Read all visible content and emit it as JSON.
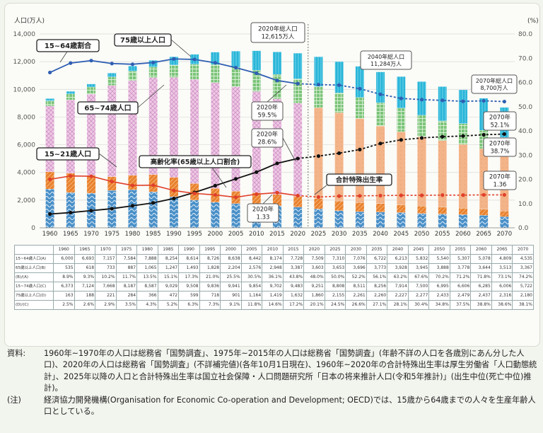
{
  "chart_data": {
    "type": "bar",
    "left_axis_label": "人口(万人)",
    "right_axis_label": "(%)",
    "left_ticks": [
      "0",
      "2,000",
      "4,000",
      "6,000",
      "8,000",
      "10,000",
      "12,000",
      "14,000"
    ],
    "right_ticks": [
      "0.0",
      "10.0",
      "20.0",
      "30.0",
      "40.0",
      "50.0",
      "60.0",
      "70.0",
      "80.0"
    ],
    "ylim_left": [
      0,
      14000
    ],
    "ylim_right": [
      0,
      80
    ],
    "categories": [
      "1960",
      "1965",
      "1970",
      "1975",
      "1980",
      "1985",
      "1990",
      "1995",
      "2000",
      "2005",
      "2010",
      "2015",
      "2020",
      "2025",
      "2030",
      "2035",
      "2040",
      "2045",
      "2050",
      "2055",
      "2060",
      "2065",
      "2070"
    ],
    "projection_start_index": 13,
    "bar_segments": [
      {
        "segment": "0-14",
        "values": [
          2800,
          2550,
          2500,
          2700,
          2750,
          2600,
          2250,
          2000,
          1850,
          1750,
          1680,
          1590,
          1500,
          1360,
          1240,
          1170,
          1140,
          1100,
          1040,
          995,
          950,
          900,
          800
        ]
      },
      {
        "segment": "15-21",
        "values": [
          1250,
          1400,
          1300,
          1000,
          1050,
          1250,
          1400,
          1200,
          1000,
          890,
          850,
          830,
          780,
          750,
          700,
          650,
          610,
          560,
          530,
          500,
          470,
          450,
          420
        ]
      },
      {
        "segment": "22-64",
        "values": [
          4750,
          5290,
          5857,
          6584,
          6838,
          7004,
          7214,
          7526,
          7638,
          7552,
          7324,
          6898,
          6729,
          6560,
          6376,
          6072,
          5603,
          5272,
          5010,
          4807,
          4608,
          4359,
          4115
        ]
      },
      {
        "segment": "65-74",
        "values": [
          372,
          430,
          512,
          613,
          682,
          767,
          892,
          1088,
          1301,
          1407,
          1517,
          1752,
          1747,
          1532,
          1428,
          1516,
          1681,
          1715,
          1548,
          1418,
          1502,
          1333,
          1187
        ]
      },
      {
        "segment": "75+",
        "values": [
          163,
          188,
          221,
          284,
          366,
          472,
          599,
          718,
          901,
          1164,
          1419,
          1632,
          1860,
          2155,
          2261,
          2260,
          2227,
          2277,
          2433,
          2479,
          2437,
          2316,
          2180
        ]
      }
    ],
    "series": [
      {
        "name": "15~64歳割合",
        "axis": "right",
        "values": [
          64.1,
          68.0,
          69.0,
          67.8,
          67.5,
          68.2,
          69.7,
          69.5,
          68.1,
          66.1,
          63.8,
          60.8,
          59.5,
          59.1,
          58.9,
          57.4,
          55.1,
          53.4,
          52.9,
          52.6,
          52.2,
          52.4,
          52.1
        ]
      },
      {
        "name": "高齢化率(65歳以上人口割合)",
        "axis": "right",
        "values": [
          5.7,
          6.3,
          7.1,
          7.9,
          9.1,
          10.3,
          12.1,
          14.6,
          17.4,
          20.2,
          23.0,
          26.6,
          28.6,
          29.6,
          30.8,
          32.3,
          34.8,
          36.3,
          37.1,
          37.6,
          37.9,
          38.4,
          38.7
        ]
      },
      {
        "name": "合計特殊出生率",
        "axis": "right",
        "values": [
          20.0,
          21.4,
          21.3,
          19.1,
          17.5,
          17.6,
          15.4,
          14.2,
          13.6,
          12.6,
          13.9,
          14.5,
          13.3,
          12.7,
          13.1,
          13.2,
          13.3,
          13.4,
          13.4,
          13.5,
          13.5,
          13.6,
          13.6
        ]
      }
    ],
    "labels": {
      "r1564": "15~64歳割合",
      "r75": "75歳以上人口",
      "r6574": "65~74歳人口",
      "r1521": "15~21歳人口",
      "aging": "高齢化率(65歳以上人口割合)",
      "tfr": "合計特殊出生率",
      "tot2020": [
        "2020年総人口",
        "12,615万人"
      ],
      "tot2040": [
        "2040年総人口",
        "11,284万人"
      ],
      "tot2070": [
        "2070年総人口",
        "8,700万人"
      ],
      "p1564_2020": [
        "2020年",
        "59.5%"
      ],
      "aging_2020": [
        "2020年",
        "28.6%"
      ],
      "tfr_2020": [
        "2020年",
        "1.33"
      ],
      "p1564_2070": [
        "2070年",
        "52.1%"
      ],
      "aging_2070": [
        "2070年",
        "38.7%"
      ],
      "tfr_2070": [
        "2070年",
        "1.36"
      ]
    }
  },
  "table": {
    "rows": [
      {
        "label": "15~64歳人口(A)",
        "values": [
          "6,000",
          "6,693",
          "7,157",
          "7,584",
          "7,888",
          "8,254",
          "8,614",
          "8,726",
          "8,638",
          "8,442",
          "8,174",
          "7,728",
          "7,509",
          "7,310",
          "7,076",
          "6,722",
          "6,213",
          "5,832",
          "5,540",
          "5,307",
          "5,078",
          "4,809",
          "4,535"
        ]
      },
      {
        "label": "65歳以上人口(B)",
        "values": [
          "535",
          "618",
          "733",
          "887",
          "1,065",
          "1,247",
          "1,493",
          "1,828",
          "2,204",
          "2,576",
          "2,948",
          "3,387",
          "3,603",
          "3,653",
          "3,696",
          "3,773",
          "3,928",
          "3,945",
          "3,888",
          "3,778",
          "3,644",
          "3,513",
          "3,367"
        ]
      },
      {
        "label": "(B)/(A)",
        "values": [
          "8.9%",
          "9.3%",
          "10.2%",
          "11.7%",
          "13.5%",
          "15.1%",
          "17.3%",
          "21.0%",
          "25.5%",
          "30.5%",
          "36.1%",
          "43.8%",
          "48.0%",
          "50.0%",
          "52.2%",
          "56.1%",
          "63.2%",
          "67.6%",
          "70.2%",
          "71.2%",
          "71.8%",
          "73.1%",
          "74.2%"
        ]
      },
      {
        "label": "15~74歳人口(C)",
        "values": [
          "6,373",
          "7,124",
          "7,668",
          "8,187",
          "8,587",
          "9,029",
          "9,508",
          "9,836",
          "9,941",
          "9,854",
          "9,702",
          "9,483",
          "9,251",
          "8,808",
          "8,511",
          "8,256",
          "7,914",
          "7,500",
          "6,995",
          "6,606",
          "6,285",
          "6,006",
          "5,722"
        ]
      },
      {
        "label": "75歳以上人口(D)",
        "values": [
          "163",
          "188",
          "221",
          "284",
          "366",
          "472",
          "599",
          "718",
          "901",
          "1,164",
          "1,419",
          "1,632",
          "1,860",
          "2,155",
          "2,261",
          "2,260",
          "2,227",
          "2,277",
          "2,433",
          "2,479",
          "2,437",
          "2,316",
          "2,180"
        ]
      },
      {
        "label": "(D)/(C)",
        "values": [
          "2.5%",
          "2.6%",
          "2.9%",
          "3.5%",
          "4.3%",
          "5.2%",
          "6.3%",
          "7.3%",
          "9.1%",
          "11.8%",
          "14.6%",
          "17.2%",
          "20.1%",
          "24.5%",
          "26.6%",
          "27.1%",
          "28.1%",
          "30.4%",
          "34.8%",
          "37.5%",
          "38.8%",
          "38.6%",
          "38.1%"
        ]
      }
    ]
  },
  "notes": {
    "source_head": "資料:",
    "source_text": "1960年~1970年の人口は総務省「国勢調査」、1975年~2015年の人口は総務省「国勢調査」(年齢不詳の人口を各歳別にあん分した人口)、2020年の人口は総務省「国勢調査」(不詳補完値)(各年10月1日現在)、1960年~2020年の合計特殊出生率は厚生労働省「人口動態統計」、2025年以降の人口と合計特殊出生率は国立社会保障・人口問題研究所「日本の将来推計人口(令和5年推計)」(出生中位(死亡中位)推計)。",
    "note_head": "(注)",
    "note_text": "経済協力開発機構(Organisation for Economic Co-operation and Development; OECD)では、15歳から64歳までの人々を生産年齢人口としている。"
  },
  "colors": {
    "s0_14": "#4a90c8",
    "s15_21": "#e8822e",
    "s22_64_hist": "#efc8e4",
    "s22_64_proj": "#f3b489",
    "s65_74": "#7cc47a",
    "s75": "#29b5d8",
    "line_1564": "#2f5fb3",
    "line_aging": "#111111",
    "line_tfr": "#e0402a"
  }
}
